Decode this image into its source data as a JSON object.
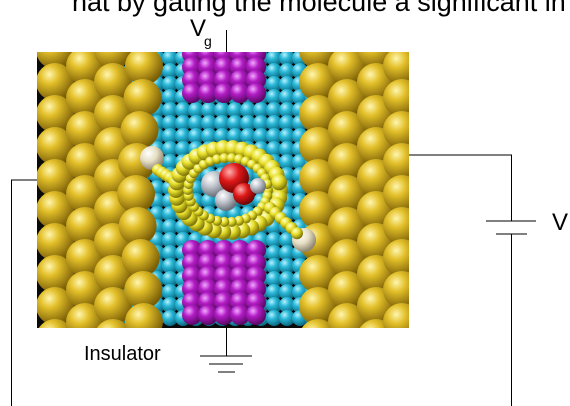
{
  "header_text": "hat by gating the molecule a significant in",
  "labels": {
    "gate_voltage": "V",
    "gate_voltage_subscript": "g",
    "bias_voltage": "V",
    "insulator": "Insulator"
  },
  "colors": {
    "gold_electrode": "#d4ae1c",
    "cyan_substrate": "#2ab8d8",
    "magenta_gate": "#b21cc4",
    "molecule_red": "#e01818",
    "molecule_gray": "#bfc4cc",
    "molecule_yellow": "#e8e02a",
    "end_group": "#e6dfc4"
  }
}
